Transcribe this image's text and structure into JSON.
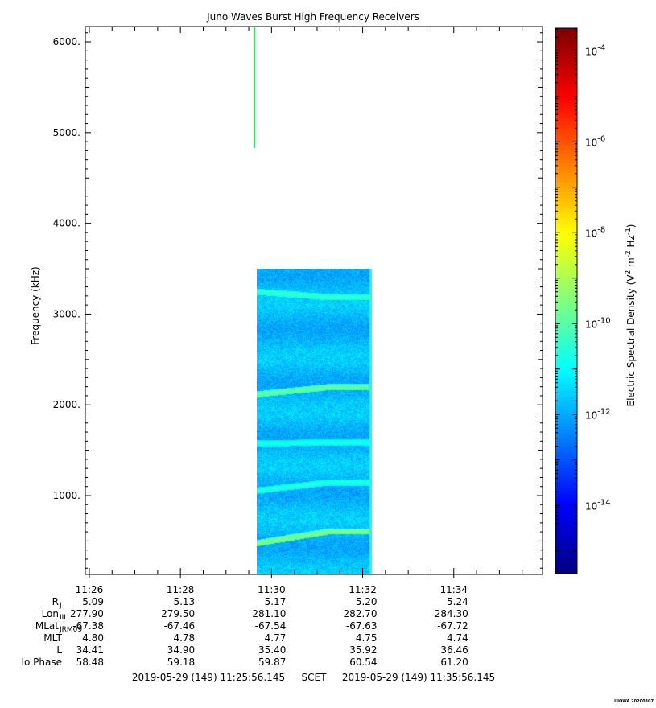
{
  "chart_data": {
    "type": "heatmap",
    "title": "Juno Waves Burst High Frequency Receivers",
    "ylabel": "Frequency (kHz)",
    "ylim": [
      140,
      6160
    ],
    "yticks": [
      {
        "v": 1000,
        "label": "1000."
      },
      {
        "v": 2000,
        "label": "2000."
      },
      {
        "v": 3000,
        "label": "3000."
      },
      {
        "v": 4000,
        "label": "4000."
      },
      {
        "v": 5000,
        "label": "5000."
      },
      {
        "v": 6000,
        "label": "6000."
      }
    ],
    "xlim_minutes": [
      685.93,
      695.93
    ],
    "xticks": [
      {
        "v": 686,
        "label": "11:26"
      },
      {
        "v": 688,
        "label": "11:28"
      },
      {
        "v": 690,
        "label": "11:30"
      },
      {
        "v": 692,
        "label": "11:32"
      },
      {
        "v": 694,
        "label": "11:34"
      }
    ],
    "data_block": {
      "t_start": 689.67,
      "t_end": 692.2,
      "f_min": 140,
      "f_max": 3500,
      "background_level": -11.8
    },
    "green_spike": {
      "t": 689.62,
      "f_min": 4830,
      "f_max": 6160
    },
    "emission_bands": [
      {
        "f_start": 480,
        "f_end": 610,
        "level": -9.5
      },
      {
        "f_start": 1060,
        "f_end": 1150,
        "level": -10.5
      },
      {
        "f_start": 1580,
        "f_end": 1590,
        "level": -10.6
      },
      {
        "f_start": 2120,
        "f_end": 2200,
        "level": -9.8
      },
      {
        "f_start": 3250,
        "f_end": 3190,
        "level": -10.3
      }
    ],
    "colorbar": {
      "label": "Electric Spectral Density (V",
      "label_exp1": "2",
      "label_mid": " m",
      "label_exp2": "-2",
      "label_end": " Hz",
      "label_exp3": "-1",
      "label_close": ")",
      "range_log": [
        -15.5,
        -3.5
      ],
      "ticks": [
        {
          "exp": -14,
          "base": "10",
          "sup": "-14"
        },
        {
          "exp": -12,
          "base": "10",
          "sup": "-12"
        },
        {
          "exp": -10,
          "base": "10",
          "sup": "-10"
        },
        {
          "exp": -8,
          "base": "10",
          "sup": "-8"
        },
        {
          "exp": -6,
          "base": "10",
          "sup": "-6"
        },
        {
          "exp": -4,
          "base": "10",
          "sup": "-4"
        }
      ]
    }
  },
  "ephemeris": {
    "rows": [
      {
        "label": "R",
        "sub": "J",
        "values": [
          "5.09",
          "5.13",
          "5.17",
          "5.20",
          "5.24"
        ]
      },
      {
        "label": "Lon",
        "sub": "III",
        "values": [
          "277.90",
          "279.50",
          "281.10",
          "282.70",
          "284.30"
        ]
      },
      {
        "label": "MLat",
        "sub": "JRM09",
        "values": [
          "-67.38",
          "-67.46",
          "-67.54",
          "-67.63",
          "-67.72"
        ]
      },
      {
        "label": "MLT",
        "sub": "",
        "values": [
          "4.80",
          "4.78",
          "4.77",
          "4.75",
          "4.74"
        ]
      },
      {
        "label": "L",
        "sub": "",
        "values": [
          "34.41",
          "34.90",
          "35.40",
          "35.92",
          "36.46"
        ]
      },
      {
        "label": "Io Phase",
        "sub": "",
        "values": [
          "58.48",
          "59.18",
          "59.87",
          "60.54",
          "61.20"
        ]
      }
    ]
  },
  "footer": {
    "start": "2019-05-29 (149) 11:25:56.145",
    "frame": "SCET",
    "end": "2019-05-29 (149) 11:35:56.145",
    "credit": "UIOWA 20200307"
  }
}
